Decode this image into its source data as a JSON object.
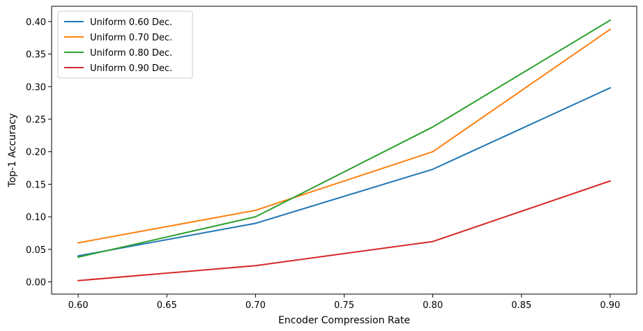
{
  "chart_data": {
    "type": "line",
    "title": "",
    "xlabel": "Encoder Compression Rate",
    "ylabel": "Top-1 Accuracy",
    "x": [
      0.6,
      0.7,
      0.8,
      0.9
    ],
    "xlim": [
      0.585,
      0.915
    ],
    "ylim": [
      -0.0187,
      0.4234
    ],
    "xticks": [
      0.6,
      0.65,
      0.7,
      0.75,
      0.8,
      0.85,
      0.9
    ],
    "xtick_labels": [
      "0.60",
      "0.65",
      "0.70",
      "0.75",
      "0.80",
      "0.85",
      "0.90"
    ],
    "yticks": [
      0.0,
      0.05,
      0.1,
      0.15,
      0.2,
      0.25,
      0.3,
      0.35,
      0.4
    ],
    "ytick_labels": [
      "0.00",
      "0.05",
      "0.10",
      "0.15",
      "0.20",
      "0.25",
      "0.30",
      "0.35",
      "0.40"
    ],
    "grid": false,
    "legend_position": "top-left",
    "series": [
      {
        "name": "Uniform 0.60 Dec.",
        "color": "#1f77b4",
        "values": [
          0.04,
          0.09,
          0.173,
          0.298
        ]
      },
      {
        "name": "Uniform 0.70 Dec.",
        "color": "#ff7f0e",
        "values": [
          0.06,
          0.11,
          0.2,
          0.388
        ]
      },
      {
        "name": "Uniform 0.80 Dec.",
        "color": "#2ca02c",
        "values": [
          0.038,
          0.1,
          0.238,
          0.402
        ]
      },
      {
        "name": "Uniform 0.90 Dec.",
        "color": "#d62728",
        "values": [
          0.002,
          0.025,
          0.062,
          0.155
        ]
      }
    ]
  }
}
